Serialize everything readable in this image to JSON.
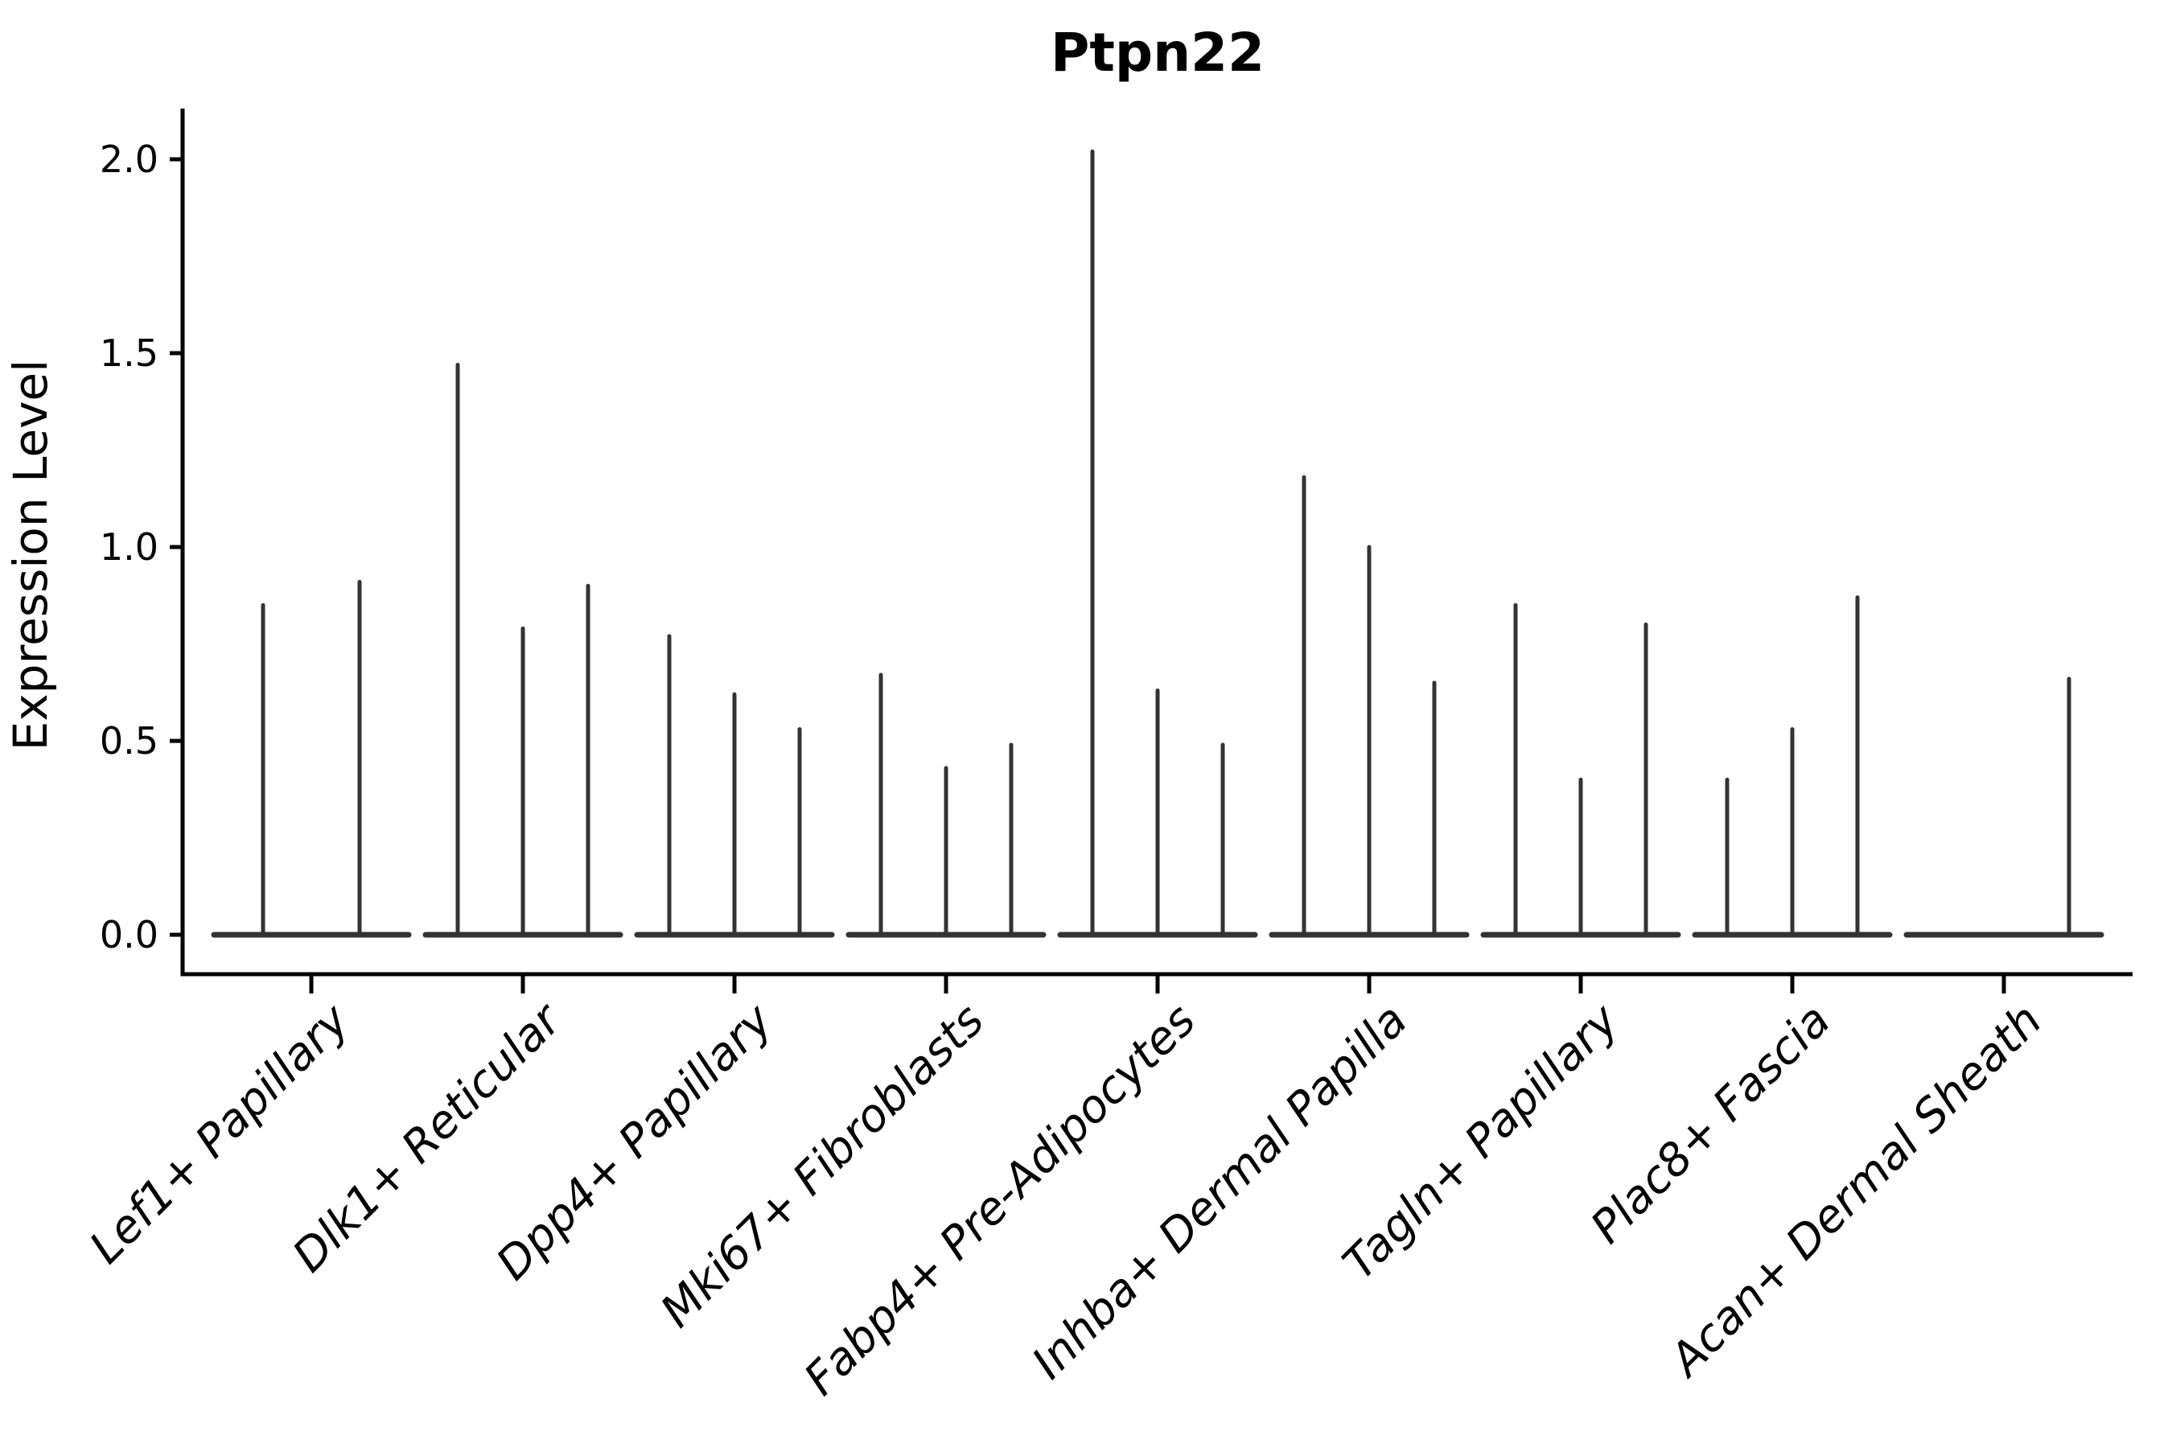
{
  "chart_data": {
    "type": "violin",
    "title": "Ptpn22",
    "xlabel": "",
    "ylabel": "Expression Level",
    "yticks": [
      0.0,
      0.5,
      1.0,
      1.5,
      2.0
    ],
    "ylim": [
      0.0,
      2.1
    ],
    "grid": false,
    "legend": false,
    "style_note": "Seurat-style single-gene violin plot; violins collapse to thin vertical spikes on a flat zero baseline (most cells at 0 expression). 2 violins in first category, 3 in the rest.",
    "categories": [
      "Lef1+ Papillary",
      "Dlk1+ Reticular",
      "Dpp4+ Papillary",
      "Mki67+ Fibroblasts",
      "Fabp4+ Pre-Adipocytes",
      "Inhba+ Dermal Papilla",
      "Tagln+ Papillary",
      "Plac8+ Fascia",
      "Acan+ Dermal Sheath"
    ],
    "violin_max_expression": [
      [
        0.85,
        0.91
      ],
      [
        1.47,
        0.79,
        0.9
      ],
      [
        0.77,
        0.62,
        0.53
      ],
      [
        0.67,
        0.43,
        0.49
      ],
      [
        2.02,
        0.63,
        0.49
      ],
      [
        1.18,
        1.0,
        0.65
      ],
      [
        0.85,
        0.4,
        0.8
      ],
      [
        0.4,
        0.53,
        0.87
      ],
      [
        0.0,
        0.0,
        0.66
      ]
    ],
    "colors": {
      "violin": "#333333",
      "axis": "#000000",
      "text": "#000000",
      "background": "#ffffff"
    }
  }
}
